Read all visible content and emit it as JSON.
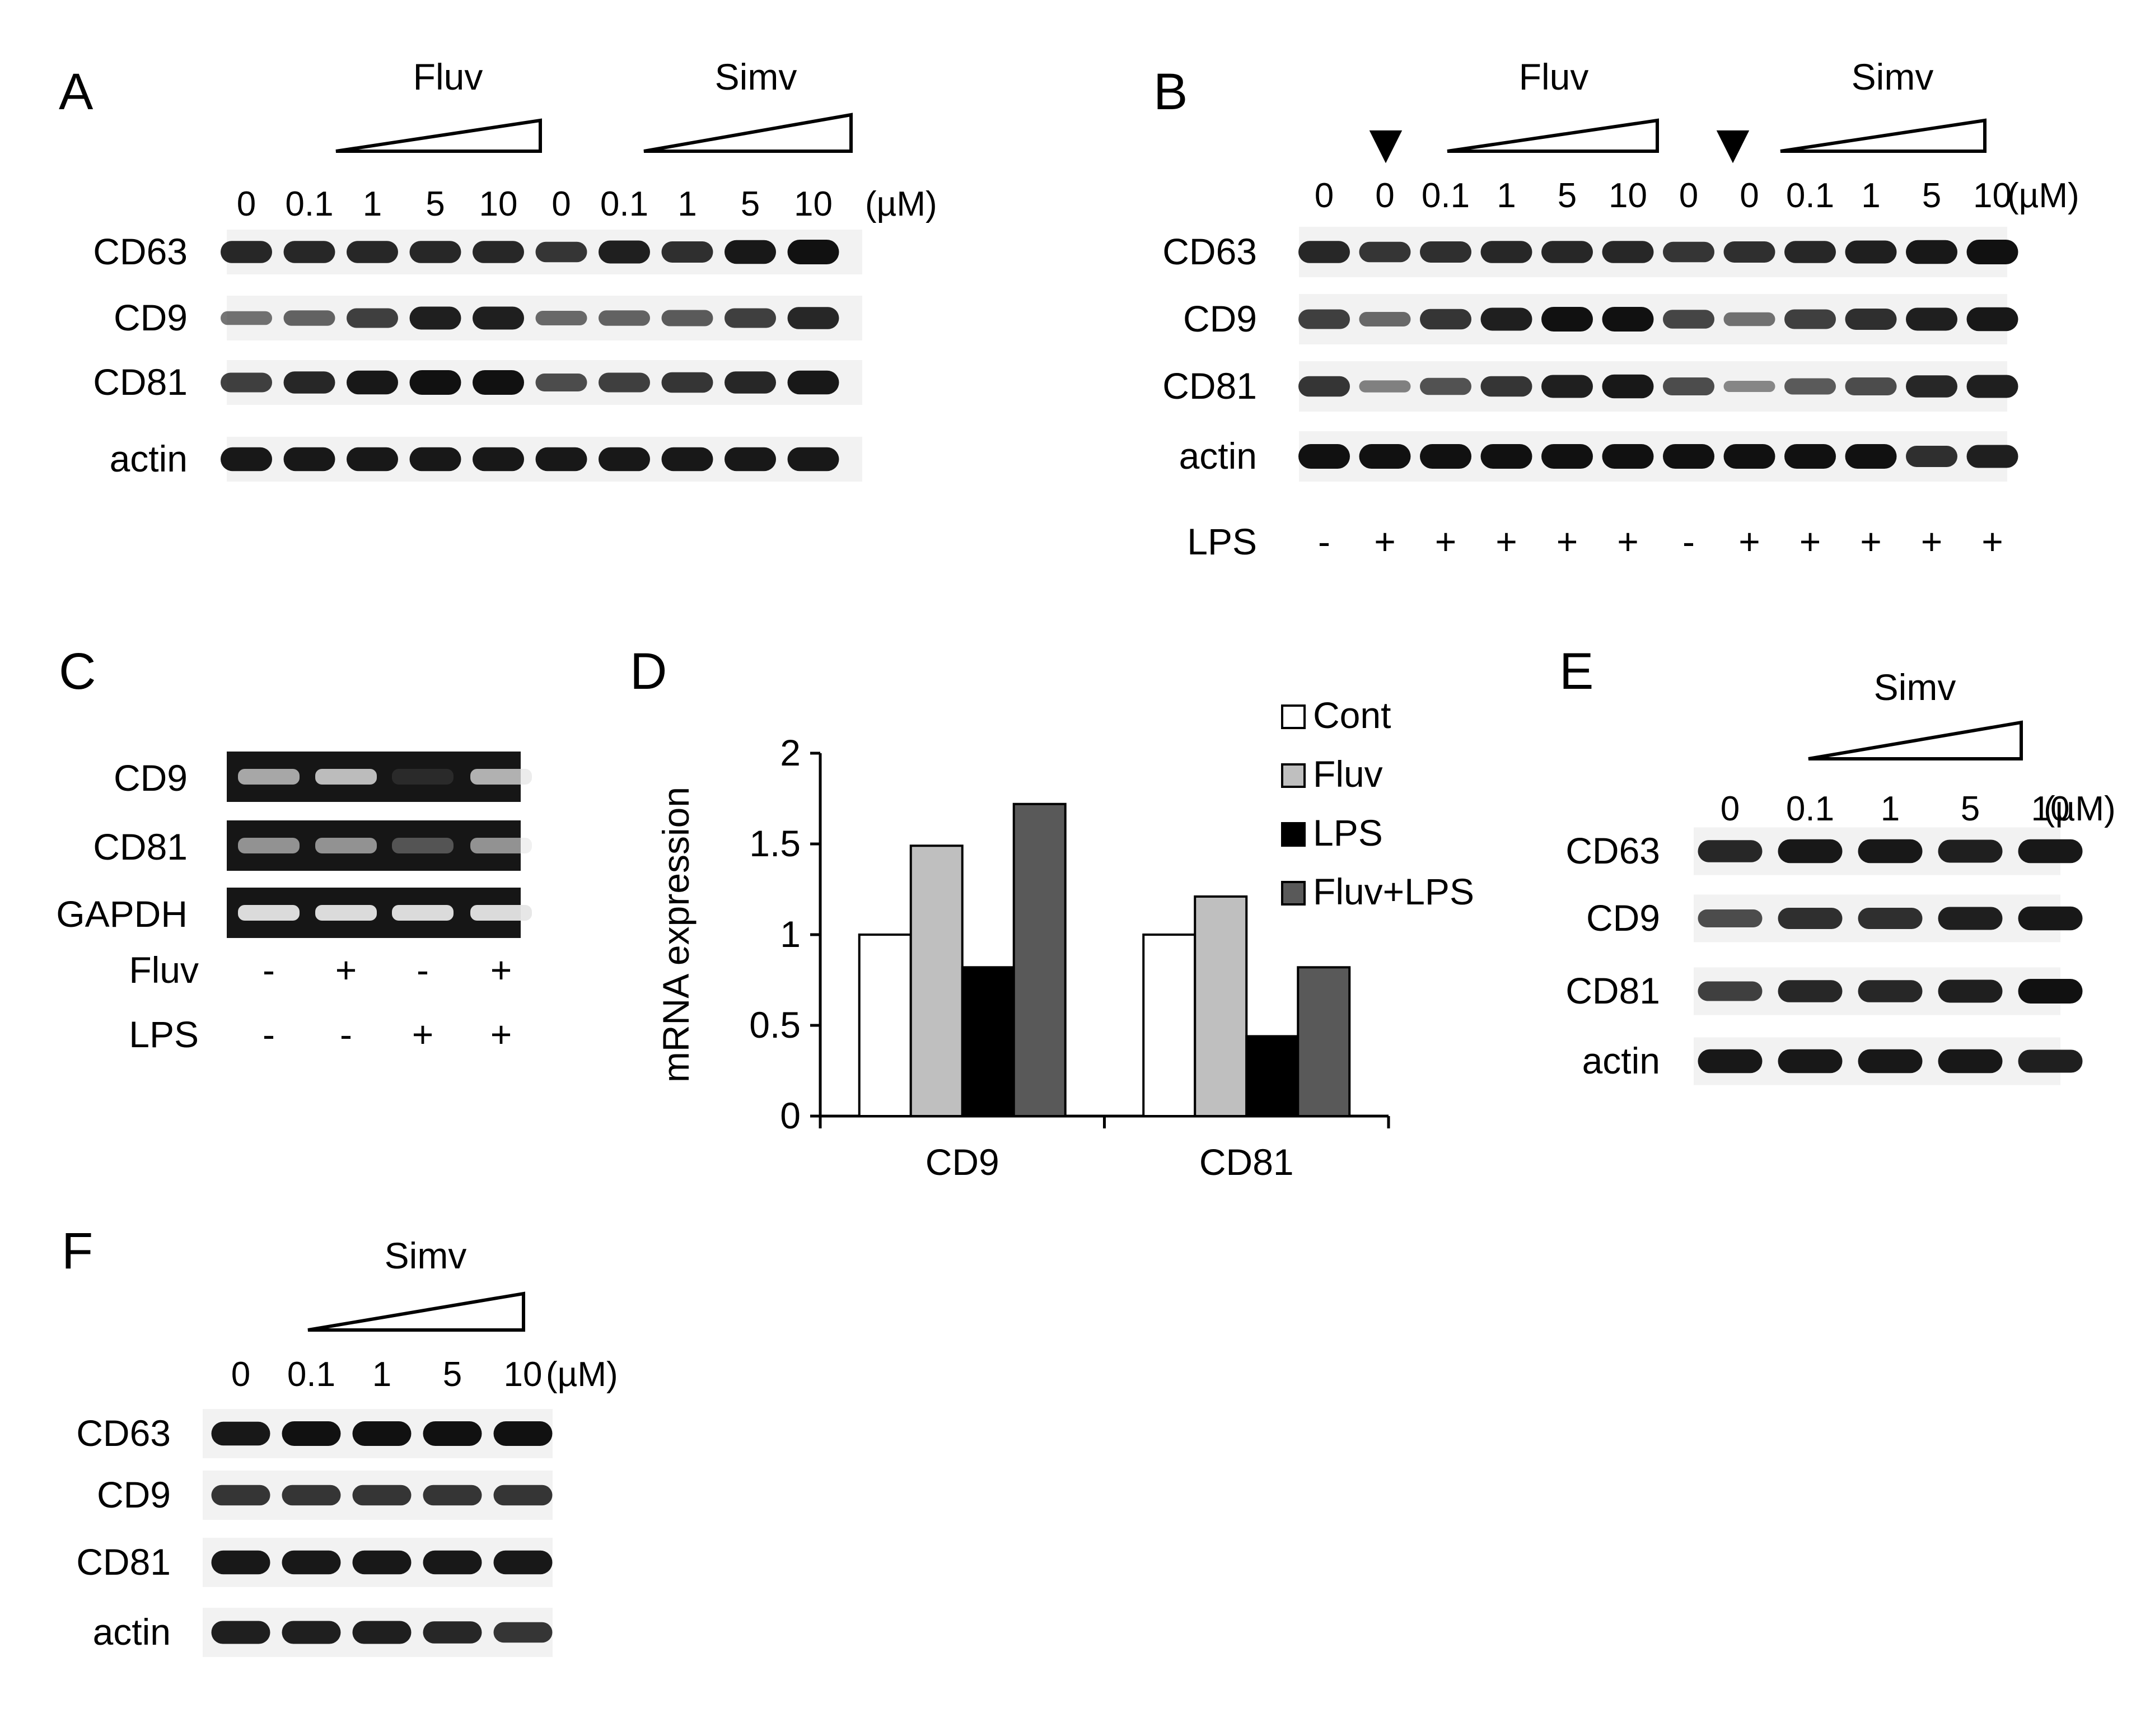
{
  "panels": {
    "A": {
      "label": "A",
      "groups": [
        "Fluv",
        "Simv"
      ],
      "lanes": [
        "0",
        "0.1",
        "1",
        "5",
        "10",
        "0",
        "0.1",
        "1",
        "5",
        "10"
      ],
      "unit": "(µM)",
      "rows": [
        "CD63",
        "CD9",
        "CD81",
        "actin"
      ],
      "intensity": [
        [
          0.85,
          0.85,
          0.85,
          0.85,
          0.85,
          0.75,
          0.9,
          0.8,
          0.95,
          1.0
        ],
        [
          0.35,
          0.45,
          0.7,
          0.9,
          0.9,
          0.4,
          0.45,
          0.5,
          0.7,
          0.85
        ],
        [
          0.7,
          0.85,
          0.95,
          1.0,
          1.0,
          0.6,
          0.7,
          0.75,
          0.85,
          0.95
        ],
        [
          0.95,
          0.95,
          0.95,
          0.95,
          0.95,
          0.95,
          0.95,
          0.95,
          0.95,
          0.95
        ]
      ]
    },
    "B": {
      "label": "B",
      "groups": [
        "Fluv",
        "Simv"
      ],
      "markers": [
        "▼",
        "▼"
      ],
      "lanes": [
        "0",
        "0",
        "0.1",
        "1",
        "5",
        "10",
        "0",
        "0",
        "0.1",
        "1",
        "5",
        "10"
      ],
      "unit": "(µM)",
      "rows": [
        "CD63",
        "CD9",
        "CD81",
        "actin"
      ],
      "lps_label": "LPS",
      "lps": [
        "-",
        "+",
        "+",
        "+",
        "+",
        "+",
        "-",
        "+",
        "+",
        "+",
        "+",
        "+"
      ],
      "intensity": [
        [
          0.85,
          0.75,
          0.8,
          0.85,
          0.85,
          0.85,
          0.75,
          0.8,
          0.85,
          0.9,
          0.95,
          1.0
        ],
        [
          0.7,
          0.4,
          0.75,
          0.9,
          1.0,
          1.0,
          0.65,
          0.35,
          0.7,
          0.8,
          0.9,
          0.95
        ],
        [
          0.75,
          0.25,
          0.55,
          0.75,
          0.9,
          0.95,
          0.6,
          0.2,
          0.5,
          0.6,
          0.85,
          0.9
        ],
        [
          1.0,
          1.0,
          1.0,
          1.0,
          1.0,
          1.0,
          1.0,
          1.0,
          1.0,
          1.0,
          0.8,
          0.9
        ]
      ]
    },
    "C": {
      "label": "C",
      "rows": [
        "CD9",
        "CD81",
        "GAPDH"
      ],
      "treatments": [
        {
          "label": "Fluv",
          "values": [
            "-",
            "+",
            "-",
            "+"
          ]
        },
        {
          "label": "LPS",
          "values": [
            "-",
            "-",
            "+",
            "+"
          ]
        }
      ],
      "intensity": [
        [
          0.7,
          0.8,
          0.1,
          0.75
        ],
        [
          0.6,
          0.6,
          0.3,
          0.6
        ],
        [
          0.95,
          0.95,
          0.95,
          0.95
        ]
      ]
    },
    "D": {
      "label": "D",
      "chart_data": {
        "type": "bar",
        "categories": [
          "CD9",
          "CD81"
        ],
        "series": [
          {
            "name": "Cont",
            "values": [
              1.0,
              1.0
            ],
            "color": "#ffffff"
          },
          {
            "name": "Fluv",
            "values": [
              1.49,
              1.21
            ],
            "color": "#bfbfbf"
          },
          {
            "name": "LPS",
            "values": [
              0.82,
              0.44
            ],
            "color": "#000000"
          },
          {
            "name": "Fluv+LPS",
            "values": [
              1.72,
              0.82
            ],
            "color": "#595959"
          }
        ],
        "ylabel": "mRNA expression",
        "ylim": [
          0,
          2
        ],
        "yticks": [
          "0",
          "0.5",
          "1",
          "1.5",
          "2"
        ],
        "legend": "top-right",
        "grid": false
      }
    },
    "E": {
      "label": "E",
      "group": "Simv",
      "lanes": [
        "0",
        "0.1",
        "1",
        "5",
        "10"
      ],
      "unit": "(µM)",
      "rows": [
        "CD63",
        "CD9",
        "CD81",
        "actin"
      ],
      "intensity": [
        [
          0.85,
          0.95,
          0.95,
          0.9,
          0.95
        ],
        [
          0.6,
          0.8,
          0.8,
          0.9,
          0.95
        ],
        [
          0.7,
          0.85,
          0.85,
          0.9,
          1.0
        ],
        [
          0.95,
          0.95,
          0.95,
          0.95,
          0.9
        ]
      ]
    },
    "F": {
      "label": "F",
      "group": "Simv",
      "lanes": [
        "0",
        "0.1",
        "1",
        "5",
        "10"
      ],
      "unit": "(µM)",
      "rows": [
        "CD63",
        "CD9",
        "CD81",
        "actin"
      ],
      "intensity": [
        [
          0.95,
          1.0,
          1.0,
          1.0,
          1.0
        ],
        [
          0.75,
          0.75,
          0.75,
          0.75,
          0.75
        ],
        [
          0.95,
          0.95,
          0.95,
          0.95,
          0.95
        ],
        [
          0.9,
          0.9,
          0.9,
          0.85,
          0.75
        ]
      ]
    }
  }
}
